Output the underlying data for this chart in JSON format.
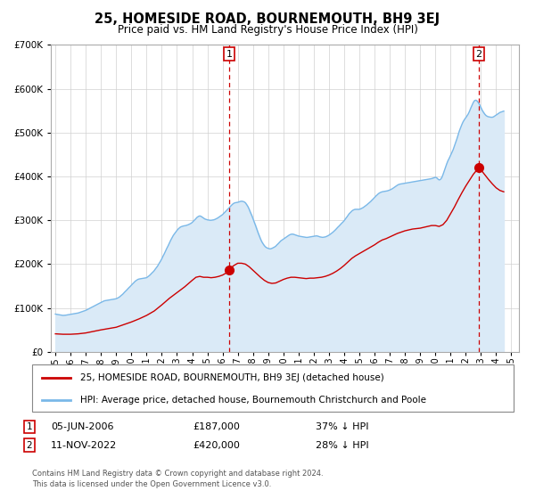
{
  "title": "25, HOMESIDE ROAD, BOURNEMOUTH, BH9 3EJ",
  "subtitle": "Price paid vs. HM Land Registry's House Price Index (HPI)",
  "legend_line1": "25, HOMESIDE ROAD, BOURNEMOUTH, BH9 3EJ (detached house)",
  "legend_line2": "HPI: Average price, detached house, Bournemouth Christchurch and Poole",
  "transaction1_date_label": "05-JUN-2006",
  "transaction1_price": 187000,
  "transaction1_pct": "37% ↓ HPI",
  "transaction2_date_label": "11-NOV-2022",
  "transaction2_price": 420000,
  "transaction2_pct": "28% ↓ HPI",
  "transaction1_x": 2006.43,
  "transaction2_x": 2022.86,
  "footer1": "Contains HM Land Registry data © Crown copyright and database right 2024.",
  "footer2": "This data is licensed under the Open Government Licence v3.0.",
  "hpi_color": "#7ab8e8",
  "hpi_fill_color": "#daeaf7",
  "price_color": "#cc0000",
  "vline_color": "#cc0000",
  "ylim": [
    0,
    700000
  ],
  "xlim_start": 1994.7,
  "xlim_end": 2025.5,
  "hpi_data": [
    [
      1995.0,
      86000
    ],
    [
      1995.08,
      85500
    ],
    [
      1995.17,
      85000
    ],
    [
      1995.25,
      84500
    ],
    [
      1995.33,
      84000
    ],
    [
      1995.42,
      83500
    ],
    [
      1995.5,
      83000
    ],
    [
      1995.58,
      83200
    ],
    [
      1995.67,
      83500
    ],
    [
      1995.75,
      84000
    ],
    [
      1995.83,
      84500
    ],
    [
      1995.92,
      85000
    ],
    [
      1996.0,
      85500
    ],
    [
      1996.08,
      86000
    ],
    [
      1996.17,
      86500
    ],
    [
      1996.25,
      87000
    ],
    [
      1996.33,
      87500
    ],
    [
      1996.42,
      88000
    ],
    [
      1996.5,
      88500
    ],
    [
      1996.58,
      89500
    ],
    [
      1996.67,
      90500
    ],
    [
      1996.75,
      91500
    ],
    [
      1996.83,
      92500
    ],
    [
      1996.92,
      93500
    ],
    [
      1997.0,
      94500
    ],
    [
      1997.08,
      96000
    ],
    [
      1997.17,
      97500
    ],
    [
      1997.25,
      99000
    ],
    [
      1997.33,
      100500
    ],
    [
      1997.42,
      102000
    ],
    [
      1997.5,
      103500
    ],
    [
      1997.58,
      105000
    ],
    [
      1997.67,
      106500
    ],
    [
      1997.75,
      108000
    ],
    [
      1997.83,
      109500
    ],
    [
      1997.92,
      111000
    ],
    [
      1998.0,
      112500
    ],
    [
      1998.08,
      114000
    ],
    [
      1998.17,
      115500
    ],
    [
      1998.25,
      116500
    ],
    [
      1998.33,
      117000
    ],
    [
      1998.42,
      117500
    ],
    [
      1998.5,
      118000
    ],
    [
      1998.58,
      118500
    ],
    [
      1998.67,
      119000
    ],
    [
      1998.75,
      119500
    ],
    [
      1998.83,
      120000
    ],
    [
      1998.92,
      120500
    ],
    [
      1999.0,
      121000
    ],
    [
      1999.08,
      122500
    ],
    [
      1999.17,
      124000
    ],
    [
      1999.25,
      126000
    ],
    [
      1999.33,
      128500
    ],
    [
      1999.42,
      131000
    ],
    [
      1999.5,
      134000
    ],
    [
      1999.58,
      137000
    ],
    [
      1999.67,
      140000
    ],
    [
      1999.75,
      143000
    ],
    [
      1999.83,
      146000
    ],
    [
      1999.92,
      149000
    ],
    [
      2000.0,
      152000
    ],
    [
      2000.08,
      155000
    ],
    [
      2000.17,
      158000
    ],
    [
      2000.25,
      161000
    ],
    [
      2000.33,
      163000
    ],
    [
      2000.42,
      165000
    ],
    [
      2000.5,
      166000
    ],
    [
      2000.58,
      166500
    ],
    [
      2000.67,
      167000
    ],
    [
      2000.75,
      167500
    ],
    [
      2000.83,
      168000
    ],
    [
      2000.92,
      168500
    ],
    [
      2001.0,
      169000
    ],
    [
      2001.08,
      171000
    ],
    [
      2001.17,
      173500
    ],
    [
      2001.25,
      176000
    ],
    [
      2001.33,
      179000
    ],
    [
      2001.42,
      182000
    ],
    [
      2001.5,
      185000
    ],
    [
      2001.58,
      189000
    ],
    [
      2001.67,
      193000
    ],
    [
      2001.75,
      197000
    ],
    [
      2001.83,
      202000
    ],
    [
      2001.92,
      207000
    ],
    [
      2002.0,
      212000
    ],
    [
      2002.08,
      218000
    ],
    [
      2002.17,
      224000
    ],
    [
      2002.25,
      230000
    ],
    [
      2002.33,
      236000
    ],
    [
      2002.42,
      242000
    ],
    [
      2002.5,
      248000
    ],
    [
      2002.58,
      254000
    ],
    [
      2002.67,
      260000
    ],
    [
      2002.75,
      265000
    ],
    [
      2002.83,
      269000
    ],
    [
      2002.92,
      273000
    ],
    [
      2003.0,
      277000
    ],
    [
      2003.08,
      280000
    ],
    [
      2003.17,
      283000
    ],
    [
      2003.25,
      285000
    ],
    [
      2003.33,
      286000
    ],
    [
      2003.42,
      287000
    ],
    [
      2003.5,
      287500
    ],
    [
      2003.58,
      288000
    ],
    [
      2003.67,
      289000
    ],
    [
      2003.75,
      290000
    ],
    [
      2003.83,
      291500
    ],
    [
      2003.92,
      293000
    ],
    [
      2004.0,
      295000
    ],
    [
      2004.08,
      298000
    ],
    [
      2004.17,
      301000
    ],
    [
      2004.25,
      304000
    ],
    [
      2004.33,
      307000
    ],
    [
      2004.42,
      309000
    ],
    [
      2004.5,
      310000
    ],
    [
      2004.58,
      309000
    ],
    [
      2004.67,
      307000
    ],
    [
      2004.75,
      305000
    ],
    [
      2004.83,
      303000
    ],
    [
      2004.92,
      302000
    ],
    [
      2005.0,
      301000
    ],
    [
      2005.08,
      300500
    ],
    [
      2005.17,
      300000
    ],
    [
      2005.25,
      300000
    ],
    [
      2005.33,
      300500
    ],
    [
      2005.42,
      301000
    ],
    [
      2005.5,
      302000
    ],
    [
      2005.58,
      303500
    ],
    [
      2005.67,
      305000
    ],
    [
      2005.75,
      307000
    ],
    [
      2005.83,
      309000
    ],
    [
      2005.92,
      311000
    ],
    [
      2006.0,
      313000
    ],
    [
      2006.08,
      316000
    ],
    [
      2006.17,
      319000
    ],
    [
      2006.25,
      322000
    ],
    [
      2006.33,
      325000
    ],
    [
      2006.42,
      328000
    ],
    [
      2006.5,
      331000
    ],
    [
      2006.58,
      334000
    ],
    [
      2006.67,
      337000
    ],
    [
      2006.75,
      339000
    ],
    [
      2006.83,
      340000
    ],
    [
      2006.92,
      340500
    ],
    [
      2007.0,
      341000
    ],
    [
      2007.08,
      342000
    ],
    [
      2007.17,
      343000
    ],
    [
      2007.25,
      343500
    ],
    [
      2007.33,
      343000
    ],
    [
      2007.42,
      342000
    ],
    [
      2007.5,
      340000
    ],
    [
      2007.58,
      336000
    ],
    [
      2007.67,
      331000
    ],
    [
      2007.75,
      325000
    ],
    [
      2007.83,
      318000
    ],
    [
      2007.92,
      311000
    ],
    [
      2008.0,
      304000
    ],
    [
      2008.08,
      296000
    ],
    [
      2008.17,
      288000
    ],
    [
      2008.25,
      280000
    ],
    [
      2008.33,
      272000
    ],
    [
      2008.42,
      264000
    ],
    [
      2008.5,
      257000
    ],
    [
      2008.58,
      251000
    ],
    [
      2008.67,
      246000
    ],
    [
      2008.75,
      242000
    ],
    [
      2008.83,
      239000
    ],
    [
      2008.92,
      237000
    ],
    [
      2009.0,
      236000
    ],
    [
      2009.08,
      235000
    ],
    [
      2009.17,
      235000
    ],
    [
      2009.25,
      236000
    ],
    [
      2009.33,
      237500
    ],
    [
      2009.42,
      239000
    ],
    [
      2009.5,
      241000
    ],
    [
      2009.58,
      244000
    ],
    [
      2009.67,
      247000
    ],
    [
      2009.75,
      250000
    ],
    [
      2009.83,
      253000
    ],
    [
      2009.92,
      255000
    ],
    [
      2010.0,
      257000
    ],
    [
      2010.08,
      259000
    ],
    [
      2010.17,
      261000
    ],
    [
      2010.25,
      263000
    ],
    [
      2010.33,
      265000
    ],
    [
      2010.42,
      267000
    ],
    [
      2010.5,
      268000
    ],
    [
      2010.58,
      268500
    ],
    [
      2010.67,
      268000
    ],
    [
      2010.75,
      267000
    ],
    [
      2010.83,
      266000
    ],
    [
      2010.92,
      265000
    ],
    [
      2011.0,
      264000
    ],
    [
      2011.08,
      263500
    ],
    [
      2011.17,
      263000
    ],
    [
      2011.25,
      262500
    ],
    [
      2011.33,
      262000
    ],
    [
      2011.42,
      261500
    ],
    [
      2011.5,
      261000
    ],
    [
      2011.58,
      261000
    ],
    [
      2011.67,
      261500
    ],
    [
      2011.75,
      262000
    ],
    [
      2011.83,
      262500
    ],
    [
      2011.92,
      263000
    ],
    [
      2012.0,
      263500
    ],
    [
      2012.08,
      264000
    ],
    [
      2012.17,
      264500
    ],
    [
      2012.25,
      264000
    ],
    [
      2012.33,
      263000
    ],
    [
      2012.42,
      262000
    ],
    [
      2012.5,
      261500
    ],
    [
      2012.58,
      261000
    ],
    [
      2012.67,
      261500
    ],
    [
      2012.75,
      262000
    ],
    [
      2012.83,
      263000
    ],
    [
      2012.92,
      264500
    ],
    [
      2013.0,
      266000
    ],
    [
      2013.08,
      268000
    ],
    [
      2013.17,
      270000
    ],
    [
      2013.25,
      272500
    ],
    [
      2013.33,
      275000
    ],
    [
      2013.42,
      278000
    ],
    [
      2013.5,
      281000
    ],
    [
      2013.58,
      284000
    ],
    [
      2013.67,
      287000
    ],
    [
      2013.75,
      290000
    ],
    [
      2013.83,
      293000
    ],
    [
      2013.92,
      296000
    ],
    [
      2014.0,
      299000
    ],
    [
      2014.08,
      303000
    ],
    [
      2014.17,
      307000
    ],
    [
      2014.25,
      311000
    ],
    [
      2014.33,
      315000
    ],
    [
      2014.42,
      318000
    ],
    [
      2014.5,
      321000
    ],
    [
      2014.58,
      323000
    ],
    [
      2014.67,
      324500
    ],
    [
      2014.75,
      325000
    ],
    [
      2014.83,
      325000
    ],
    [
      2014.92,
      325000
    ],
    [
      2015.0,
      325000
    ],
    [
      2015.08,
      326000
    ],
    [
      2015.17,
      327500
    ],
    [
      2015.25,
      329000
    ],
    [
      2015.33,
      331000
    ],
    [
      2015.42,
      333000
    ],
    [
      2015.5,
      335500
    ],
    [
      2015.58,
      338000
    ],
    [
      2015.67,
      340500
    ],
    [
      2015.75,
      343000
    ],
    [
      2015.83,
      346000
    ],
    [
      2015.92,
      349000
    ],
    [
      2016.0,
      352000
    ],
    [
      2016.08,
      355000
    ],
    [
      2016.17,
      358000
    ],
    [
      2016.25,
      360500
    ],
    [
      2016.33,
      362500
    ],
    [
      2016.42,
      364000
    ],
    [
      2016.5,
      365000
    ],
    [
      2016.58,
      365500
    ],
    [
      2016.67,
      366000
    ],
    [
      2016.75,
      366500
    ],
    [
      2016.83,
      367000
    ],
    [
      2016.92,
      368000
    ],
    [
      2017.0,
      369000
    ],
    [
      2017.08,
      370500
    ],
    [
      2017.17,
      372000
    ],
    [
      2017.25,
      374000
    ],
    [
      2017.33,
      376000
    ],
    [
      2017.42,
      378000
    ],
    [
      2017.5,
      380000
    ],
    [
      2017.58,
      381500
    ],
    [
      2017.67,
      382500
    ],
    [
      2017.75,
      383000
    ],
    [
      2017.83,
      383500
    ],
    [
      2017.92,
      384000
    ],
    [
      2018.0,
      384500
    ],
    [
      2018.08,
      385000
    ],
    [
      2018.17,
      385500
    ],
    [
      2018.25,
      386000
    ],
    [
      2018.33,
      386500
    ],
    [
      2018.42,
      387000
    ],
    [
      2018.5,
      387500
    ],
    [
      2018.58,
      388000
    ],
    [
      2018.67,
      388500
    ],
    [
      2018.75,
      389000
    ],
    [
      2018.83,
      389500
    ],
    [
      2018.92,
      390000
    ],
    [
      2019.0,
      390500
    ],
    [
      2019.08,
      391000
    ],
    [
      2019.17,
      391500
    ],
    [
      2019.25,
      392000
    ],
    [
      2019.33,
      392500
    ],
    [
      2019.42,
      393000
    ],
    [
      2019.5,
      393500
    ],
    [
      2019.58,
      394000
    ],
    [
      2019.67,
      394500
    ],
    [
      2019.75,
      395000
    ],
    [
      2019.83,
      396000
    ],
    [
      2019.92,
      397000
    ],
    [
      2020.0,
      398000
    ],
    [
      2020.08,
      397000
    ],
    [
      2020.17,
      394000
    ],
    [
      2020.25,
      392000
    ],
    [
      2020.33,
      393000
    ],
    [
      2020.42,
      397000
    ],
    [
      2020.5,
      404000
    ],
    [
      2020.58,
      412000
    ],
    [
      2020.67,
      421000
    ],
    [
      2020.75,
      429000
    ],
    [
      2020.83,
      436000
    ],
    [
      2020.92,
      442000
    ],
    [
      2021.0,
      448000
    ],
    [
      2021.08,
      454000
    ],
    [
      2021.17,
      461000
    ],
    [
      2021.25,
      469000
    ],
    [
      2021.33,
      477000
    ],
    [
      2021.42,
      486000
    ],
    [
      2021.5,
      495000
    ],
    [
      2021.58,
      504000
    ],
    [
      2021.67,
      512000
    ],
    [
      2021.75,
      519000
    ],
    [
      2021.83,
      525000
    ],
    [
      2021.92,
      530000
    ],
    [
      2022.0,
      534000
    ],
    [
      2022.08,
      538000
    ],
    [
      2022.17,
      543000
    ],
    [
      2022.25,
      549000
    ],
    [
      2022.33,
      556000
    ],
    [
      2022.42,
      563000
    ],
    [
      2022.5,
      569000
    ],
    [
      2022.58,
      573000
    ],
    [
      2022.67,
      574000
    ],
    [
      2022.75,
      572000
    ],
    [
      2022.83,
      568000
    ],
    [
      2022.92,
      563000
    ],
    [
      2023.0,
      557000
    ],
    [
      2023.08,
      551000
    ],
    [
      2023.17,
      546000
    ],
    [
      2023.25,
      542000
    ],
    [
      2023.33,
      539000
    ],
    [
      2023.42,
      537000
    ],
    [
      2023.5,
      536000
    ],
    [
      2023.58,
      535500
    ],
    [
      2023.67,
      535000
    ],
    [
      2023.75,
      535000
    ],
    [
      2023.83,
      536000
    ],
    [
      2023.92,
      538000
    ],
    [
      2024.0,
      540000
    ],
    [
      2024.08,
      542000
    ],
    [
      2024.17,
      544000
    ],
    [
      2024.25,
      546000
    ],
    [
      2024.33,
      547000
    ],
    [
      2024.42,
      548000
    ],
    [
      2024.5,
      549000
    ]
  ],
  "price_data": [
    [
      1995.0,
      41000
    ],
    [
      1995.5,
      40000
    ],
    [
      1996.0,
      40000
    ],
    [
      1996.5,
      41000
    ],
    [
      1997.0,
      43000
    ],
    [
      1997.5,
      46500
    ],
    [
      1998.0,
      50000
    ],
    [
      1998.5,
      53000
    ],
    [
      1999.0,
      56000
    ],
    [
      1999.5,
      62000
    ],
    [
      2000.0,
      68000
    ],
    [
      2000.5,
      75000
    ],
    [
      2001.0,
      83000
    ],
    [
      2001.5,
      93000
    ],
    [
      2002.0,
      107000
    ],
    [
      2002.5,
      122000
    ],
    [
      2003.0,
      135000
    ],
    [
      2003.5,
      148000
    ],
    [
      2004.0,
      163000
    ],
    [
      2004.25,
      170000
    ],
    [
      2004.5,
      172000
    ],
    [
      2004.75,
      170000
    ],
    [
      2005.0,
      170000
    ],
    [
      2005.25,
      169000
    ],
    [
      2005.5,
      170000
    ],
    [
      2005.75,
      172000
    ],
    [
      2006.0,
      175000
    ],
    [
      2006.25,
      180000
    ],
    [
      2006.43,
      187000
    ],
    [
      2006.5,
      190000
    ],
    [
      2006.75,
      197000
    ],
    [
      2007.0,
      202000
    ],
    [
      2007.25,
      202000
    ],
    [
      2007.5,
      200000
    ],
    [
      2007.75,
      194000
    ],
    [
      2008.0,
      186000
    ],
    [
      2008.25,
      178000
    ],
    [
      2008.5,
      170000
    ],
    [
      2008.75,
      163000
    ],
    [
      2009.0,
      158000
    ],
    [
      2009.25,
      156000
    ],
    [
      2009.5,
      157000
    ],
    [
      2009.75,
      161000
    ],
    [
      2010.0,
      165000
    ],
    [
      2010.25,
      168000
    ],
    [
      2010.5,
      170000
    ],
    [
      2010.75,
      170000
    ],
    [
      2011.0,
      169000
    ],
    [
      2011.25,
      168000
    ],
    [
      2011.5,
      167000
    ],
    [
      2011.75,
      168000
    ],
    [
      2012.0,
      168000
    ],
    [
      2012.25,
      169000
    ],
    [
      2012.5,
      170000
    ],
    [
      2012.75,
      172000
    ],
    [
      2013.0,
      175000
    ],
    [
      2013.25,
      179000
    ],
    [
      2013.5,
      184000
    ],
    [
      2013.75,
      190000
    ],
    [
      2014.0,
      197000
    ],
    [
      2014.25,
      205000
    ],
    [
      2014.5,
      213000
    ],
    [
      2014.75,
      219000
    ],
    [
      2015.0,
      224000
    ],
    [
      2015.25,
      229000
    ],
    [
      2015.5,
      234000
    ],
    [
      2015.75,
      239000
    ],
    [
      2016.0,
      244000
    ],
    [
      2016.25,
      250000
    ],
    [
      2016.5,
      255000
    ],
    [
      2016.75,
      258000
    ],
    [
      2017.0,
      262000
    ],
    [
      2017.25,
      266000
    ],
    [
      2017.5,
      270000
    ],
    [
      2017.75,
      273000
    ],
    [
      2018.0,
      276000
    ],
    [
      2018.25,
      278000
    ],
    [
      2018.5,
      280000
    ],
    [
      2018.75,
      281000
    ],
    [
      2019.0,
      282000
    ],
    [
      2019.25,
      284000
    ],
    [
      2019.5,
      286000
    ],
    [
      2019.75,
      288000
    ],
    [
      2020.0,
      288000
    ],
    [
      2020.25,
      286000
    ],
    [
      2020.5,
      290000
    ],
    [
      2020.75,
      300000
    ],
    [
      2021.0,
      315000
    ],
    [
      2021.25,
      330000
    ],
    [
      2021.5,
      347000
    ],
    [
      2021.75,
      363000
    ],
    [
      2022.0,
      378000
    ],
    [
      2022.5,
      405000
    ],
    [
      2022.86,
      420000
    ],
    [
      2023.0,
      415000
    ],
    [
      2023.25,
      404000
    ],
    [
      2023.5,
      393000
    ],
    [
      2023.75,
      383000
    ],
    [
      2024.0,
      374000
    ],
    [
      2024.25,
      368000
    ],
    [
      2024.5,
      365000
    ]
  ]
}
